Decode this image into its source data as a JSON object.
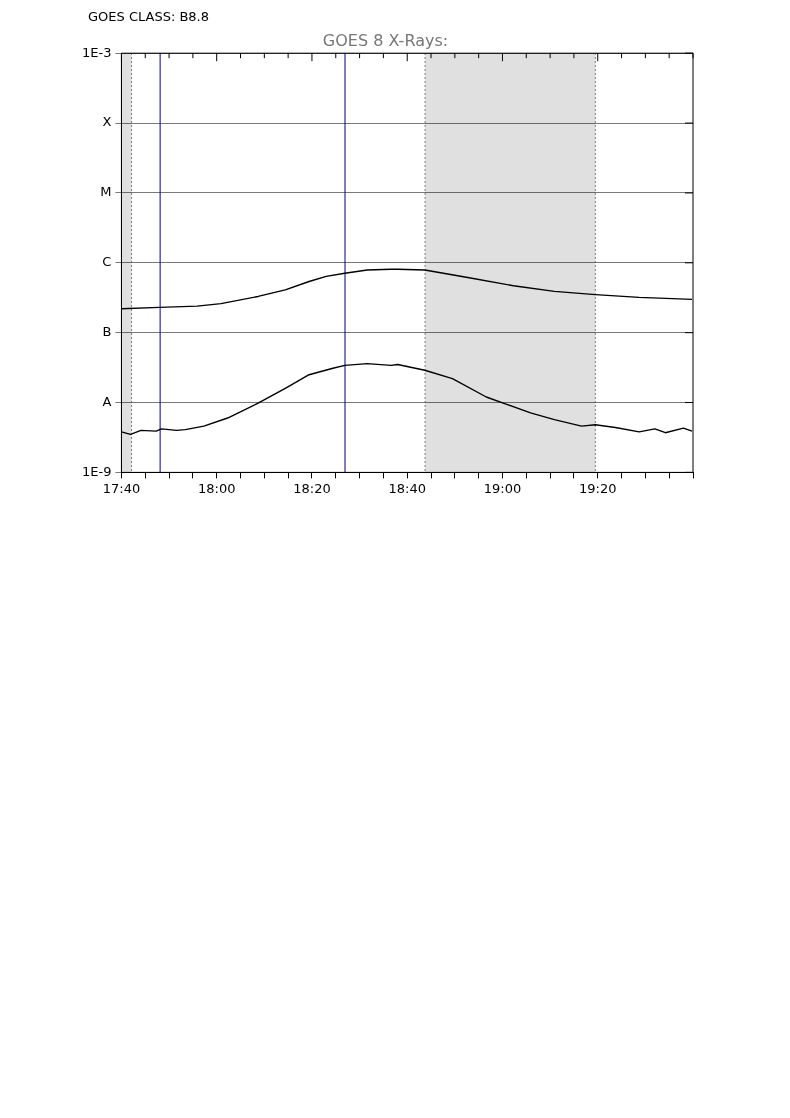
{
  "chart_data": {
    "type": "line",
    "title": "GOES 8 X-Rays:",
    "annotations": [
      "GOES CLASS: B8.8"
    ],
    "log": "y",
    "grid": "y",
    "xlim": [
      17.6667,
      19.6667
    ],
    "xticks": [
      {
        "value": 17.6667,
        "label": "17:40"
      },
      {
        "value": 17.75,
        "label": null
      },
      {
        "value": 17.8333,
        "label": null
      },
      {
        "value": 17.9167,
        "label": null
      },
      {
        "value": 18,
        "label": "18:00"
      },
      {
        "value": 18.0833,
        "label": null
      },
      {
        "value": 18.1667,
        "label": null
      },
      {
        "value": 18.25,
        "label": null
      },
      {
        "value": 18.3333,
        "label": "18:20"
      },
      {
        "value": 18.4167,
        "label": null
      },
      {
        "value": 18.5,
        "label": null
      },
      {
        "value": 18.5833,
        "label": null
      },
      {
        "value": 18.6667,
        "label": "18:40"
      },
      {
        "value": 18.75,
        "label": null
      },
      {
        "value": 18.8333,
        "label": null
      },
      {
        "value": 18.9167,
        "label": null
      },
      {
        "value": 19,
        "label": "19:00"
      },
      {
        "value": 19.0833,
        "label": null
      },
      {
        "value": 19.1667,
        "label": null
      },
      {
        "value": 19.25,
        "label": null
      },
      {
        "value": 19.3333,
        "label": "19:20"
      },
      {
        "value": 19.4167,
        "label": null
      },
      {
        "value": 19.5,
        "label": null
      },
      {
        "value": 19.5833,
        "label": null
      },
      {
        "value": 19.6667,
        "label": null
      }
    ],
    "ylim": [
      1e-09,
      0.001
    ],
    "yticks": [
      {
        "value": 1e-09,
        "label": "1E-9"
      },
      {
        "value": 1e-08,
        "label": "A"
      },
      {
        "value": 1e-07,
        "label": "B"
      },
      {
        "value": 1e-06,
        "label": "C"
      },
      {
        "value": 1e-05,
        "label": "M"
      },
      {
        "value": 0.0001,
        "label": "X"
      },
      {
        "value": 0.001,
        "label": "1E-3"
      }
    ],
    "series": [
      {
        "color": "#000000",
        "x": [
          17.6667,
          17.8,
          17.9317,
          18.015,
          18.145,
          18.24,
          18.3233,
          18.3833,
          18.4483,
          18.5267,
          18.61,
          18.6333,
          18.7283,
          18.8833,
          19.0383,
          19.1817,
          19.325,
          19.4783,
          19.6633
        ],
        "values": [
          2.2e-07,
          2.3e-07,
          2.4e-07,
          2.6e-07,
          3.3e-07,
          4.1e-07,
          5.4e-07,
          6.4e-07,
          7.1e-07,
          7.9e-07,
          8.1e-07,
          8.1e-07,
          7.9e-07,
          6.1e-07,
          4.7e-07,
          3.9e-07,
          3.5e-07,
          3.2e-07,
          3e-07
        ]
      },
      {
        "color": "#000000",
        "x": [
          17.6667,
          17.6983,
          17.735,
          17.7883,
          17.8067,
          17.86,
          17.89,
          17.955,
          18.0383,
          18.145,
          18.24,
          18.3233,
          18.4067,
          18.4483,
          18.5267,
          18.61,
          18.6333,
          18.7283,
          18.825,
          18.9433,
          19.015,
          19.0983,
          19.1817,
          19.2767,
          19.325,
          19.395,
          19.4783,
          19.5333,
          19.57,
          19.6333,
          19.6633
        ],
        "values": [
          3.8e-09,
          3.5e-09,
          4e-09,
          3.9e-09,
          4.2e-09,
          4e-09,
          4.1e-09,
          4.6e-09,
          6e-09,
          9.8e-09,
          1.6e-08,
          2.5e-08,
          3.1e-08,
          3.4e-08,
          3.6e-08,
          3.4e-08,
          3.5e-08,
          2.9e-08,
          2.2e-08,
          1.2e-08,
          9.4e-09,
          7.1e-09,
          5.7e-09,
          4.6e-09,
          4.8e-09,
          4.4e-09,
          3.8e-09,
          4.2e-09,
          3.7e-09,
          4.3e-09,
          3.9e-09
        ]
      }
    ],
    "ref_lines": [
      {
        "axis": "x",
        "value": 17.702,
        "color": "#555555",
        "line_style": "dotted"
      },
      {
        "axis": "x",
        "value": 17.802,
        "color": "#000080",
        "line_style": "solid"
      },
      {
        "axis": "x",
        "value": 18.449,
        "color": "#000080",
        "line_style": "solid"
      },
      {
        "axis": "x",
        "value": 18.729,
        "color": "#555555",
        "line_style": "dotted"
      },
      {
        "axis": "x",
        "value": 19.325,
        "color": "#555555",
        "line_style": "dotted"
      }
    ],
    "bands": [
      {
        "axis": "x",
        "from": 17.6667,
        "to": 17.702,
        "color": "#000000"
      },
      {
        "axis": "x",
        "from": 18.729,
        "to": 19.325,
        "color": "#000000"
      }
    ]
  }
}
